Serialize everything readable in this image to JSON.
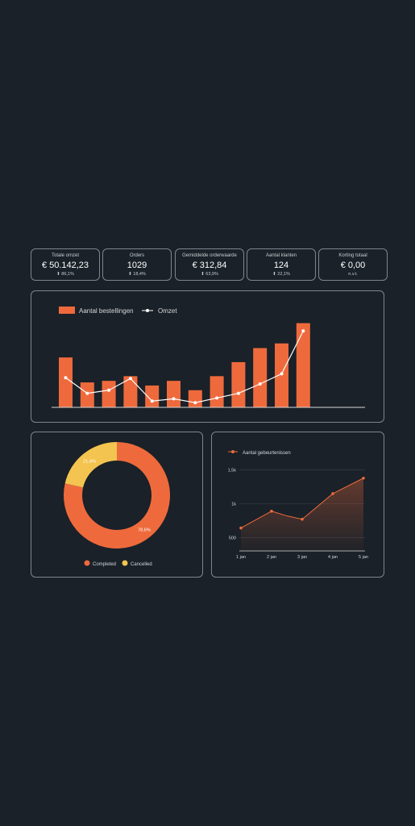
{
  "colors": {
    "background": "#1a2128",
    "accent": "#ee6a3c",
    "secondary": "#f3c44f",
    "border": "#7e858c",
    "line": "#ffffff"
  },
  "kpis": [
    {
      "label": "Totale omzet",
      "value": "€ 50.142,23",
      "change": "⬆ 86,1%"
    },
    {
      "label": "Orders",
      "value": "1029",
      "change": "⬆ 18,4%"
    },
    {
      "label": "Gemiddelde orderwaarde",
      "value": "€ 312,84",
      "change": "⬆ 63,9%"
    },
    {
      "label": "Aantal klanten",
      "value": "124",
      "change": "⬆ 22,1%"
    },
    {
      "label": "Korting totaal",
      "value": "€ 0,00",
      "change": "n.v.t."
    }
  ],
  "chart_data": [
    {
      "type": "bar",
      "legend": [
        "Aantal bestellingen",
        "Omzet"
      ],
      "legend_position": "top-left",
      "series": [
        {
          "name": "Aantal bestellingen",
          "type": "bar",
          "values": [
            64,
            32,
            34,
            40,
            28,
            34,
            22,
            40,
            58,
            76,
            82,
            108
          ]
        },
        {
          "name": "Omzet",
          "type": "line",
          "values": [
            38,
            18,
            22,
            37,
            8,
            11,
            6,
            12,
            18,
            30,
            43,
            98
          ]
        }
      ],
      "ylim": [
        0,
        120
      ],
      "grid": false
    },
    {
      "type": "pie",
      "donut": true,
      "labels": [
        "Completed",
        "Cancelled"
      ],
      "values": [
        78.6,
        21.4
      ],
      "data_labels": [
        "78,6%",
        "21,4%"
      ],
      "legend_position": "bottom"
    },
    {
      "type": "area",
      "legend": [
        "Aantal gebeurtenissen"
      ],
      "legend_position": "top-left",
      "categories": [
        "1 jan",
        "2 jan",
        "3 jan",
        "4 jan",
        "5 jan"
      ],
      "x": [
        1,
        2,
        2.5,
        3,
        4,
        5
      ],
      "y": [
        640,
        890,
        820,
        770,
        1150,
        1380
      ],
      "yticks": [
        "500",
        "1k",
        "1,5k"
      ],
      "ylim": [
        300,
        1700
      ],
      "grid": true
    }
  ]
}
